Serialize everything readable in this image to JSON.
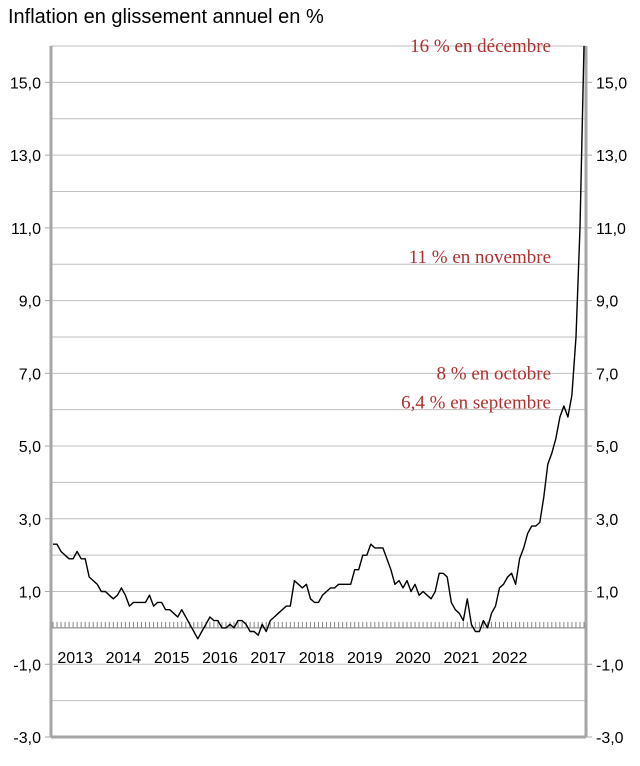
{
  "chart_data": {
    "type": "line",
    "title": "Inflation en glissement annuel en %",
    "xlabel": "",
    "ylabel": "",
    "ylim": [
      -3.0,
      16.0
    ],
    "yticks": [
      "-3,0",
      "-1,0",
      "1,0",
      "3,0",
      "5,0",
      "7,0",
      "9,0",
      "11,0",
      "13,0",
      "15,0"
    ],
    "ytick_values": [
      -3,
      -1,
      1,
      3,
      5,
      7,
      9,
      11,
      13,
      15
    ],
    "year_labels": [
      "2013",
      "2014",
      "2015",
      "2016",
      "2017",
      "2018",
      "2019",
      "2020",
      "2021",
      "2022"
    ],
    "grid": true,
    "series": [
      {
        "color": "#000000",
        "values": [
          2.3,
          2.3,
          2.1,
          2.0,
          1.9,
          1.9,
          2.1,
          1.9,
          1.9,
          1.4,
          1.3,
          1.2,
          1.0,
          1.0,
          0.9,
          0.8,
          0.9,
          1.1,
          0.9,
          0.6,
          0.7,
          0.7,
          0.7,
          0.7,
          0.9,
          0.6,
          0.7,
          0.7,
          0.5,
          0.5,
          0.4,
          0.3,
          0.5,
          0.3,
          0.1,
          -0.1,
          -0.3,
          -0.1,
          0.1,
          0.3,
          0.2,
          0.2,
          0.0,
          0.0,
          0.1,
          0.0,
          0.2,
          0.2,
          0.1,
          -0.1,
          -0.1,
          -0.2,
          0.1,
          -0.1,
          0.2,
          0.3,
          0.4,
          0.5,
          0.6,
          0.6,
          1.3,
          1.2,
          1.1,
          1.2,
          0.8,
          0.7,
          0.7,
          0.9,
          1.0,
          1.1,
          1.1,
          1.2,
          1.2,
          1.2,
          1.2,
          1.6,
          1.6,
          2.0,
          2.0,
          2.3,
          2.2,
          2.2,
          2.2,
          1.9,
          1.6,
          1.2,
          1.3,
          1.1,
          1.3,
          1.0,
          1.2,
          0.9,
          1.0,
          0.9,
          0.8,
          1.0,
          1.5,
          1.5,
          1.4,
          0.7,
          0.5,
          0.4,
          0.2,
          0.8,
          0.1,
          -0.1,
          -0.1,
          0.2,
          0.0,
          0.4,
          0.6,
          1.1,
          1.2,
          1.4,
          1.5,
          1.2,
          1.9,
          2.2,
          2.6,
          2.8,
          2.8,
          2.9,
          3.6,
          4.5,
          4.8,
          5.2,
          5.8,
          6.1,
          5.8,
          6.4,
          8.0,
          11.0,
          16.0
        ]
      }
    ],
    "annotations": [
      {
        "text": "16 % en décembre",
        "value": 16.0
      },
      {
        "text": "11 % en novembre",
        "value": 11.0
      },
      {
        "text": "8 % en octobre",
        "value": 8.0
      },
      {
        "text": "6,4 % en septembre",
        "value": 6.4
      }
    ]
  }
}
